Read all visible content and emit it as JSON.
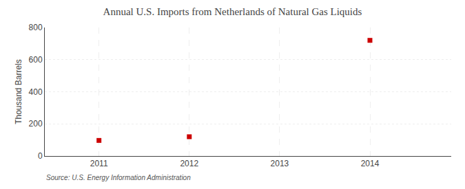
{
  "chart_data": {
    "type": "scatter",
    "title": "Annual U.S. Imports from Netherlands of Natural Gas Liquids",
    "ylabel": "Thousand Barrels",
    "annotation": "Source: U.S. Energy Information Administration",
    "x": [
      2011,
      2012,
      2014
    ],
    "values": [
      97,
      120,
      720
    ],
    "xlim": [
      2010.4,
      2014.9
    ],
    "ylim": [
      0,
      800
    ],
    "xticks": [
      2011,
      2012,
      2013,
      2014
    ],
    "yticks": [
      0,
      200,
      400,
      600,
      800
    ],
    "color": "#cc0000",
    "marker": "square",
    "grid": true
  }
}
